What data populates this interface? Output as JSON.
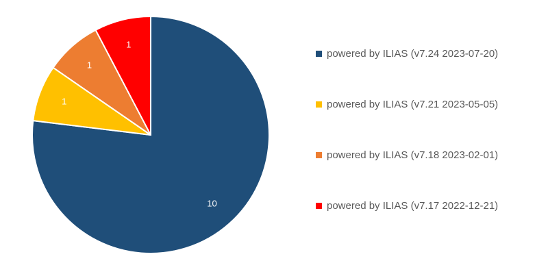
{
  "chart_data": {
    "type": "pie",
    "title": "",
    "legend_position": "right",
    "slices": [
      {
        "label": "powered by ILIAS (v7.24 2023-07-20)",
        "value": 10,
        "data_label": "10",
        "color": "#1F4E79"
      },
      {
        "label": "powered by ILIAS (v7.21 2023-05-05)",
        "value": 1,
        "data_label": "1",
        "color": "#FFC000"
      },
      {
        "label": "powered by ILIAS (v7.18 2023-02-01)",
        "value": 1,
        "data_label": "1",
        "color": "#ED7D31"
      },
      {
        "label": "powered by ILIAS (v7.17 2022-12-21)",
        "value": 1,
        "data_label": "1",
        "color": "#FF0000"
      }
    ]
  }
}
